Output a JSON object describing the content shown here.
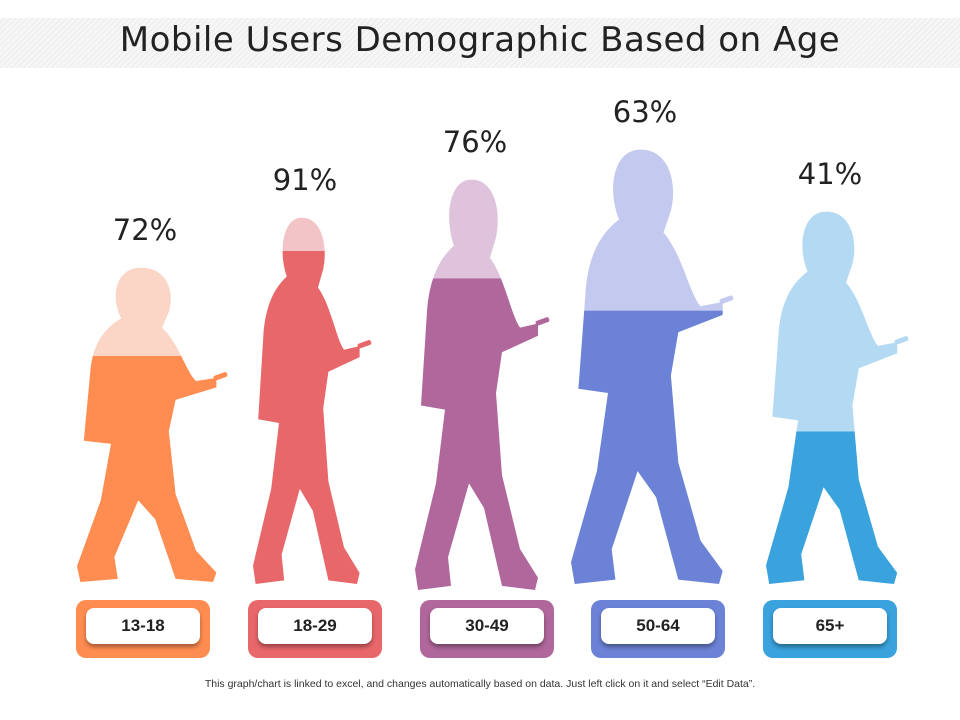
{
  "title": "Mobile Users Demographic Based on Age",
  "footnote": "This graph/chart is linked to excel, and changes automatically based on data. Just left click on it and select “Edit Data”.",
  "chart_data": {
    "type": "bar",
    "title": "Mobile Users Demographic Based on Age",
    "categories": [
      "13-18",
      "18-29",
      "30-49",
      "50-64",
      "65+"
    ],
    "values": [
      72,
      91,
      76,
      63,
      41
    ],
    "value_labels": [
      "72%",
      "91%",
      "76%",
      "63%",
      "41%"
    ],
    "unit": "%",
    "series_colors": [
      {
        "light": "#fbd5c5",
        "dark": "#ff8c50"
      },
      {
        "light": "#f3c4c7",
        "dark": "#e8676a"
      },
      {
        "light": "#dfc3dc",
        "dark": "#b0679b"
      },
      {
        "light": "#c3c9ef",
        "dark": "#6b82d6"
      },
      {
        "light": "#b3d9f3",
        "dark": "#3aa2dc"
      }
    ]
  }
}
